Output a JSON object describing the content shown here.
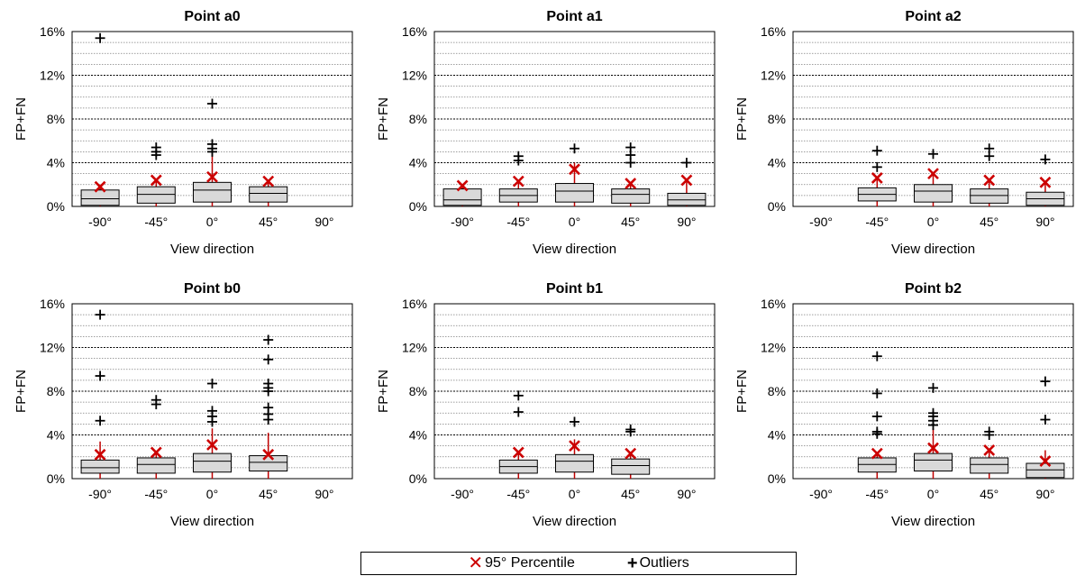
{
  "legend": {
    "percentile_label": "95° Percentile",
    "outliers_label": "Outliers"
  },
  "colors": {
    "box_fill": "#d9d9d9",
    "percentile_marker": "#cc0000",
    "whisker": "#c00000",
    "outlier": "#000000",
    "grid": "#000000"
  },
  "chart_data": [
    {
      "type": "box",
      "title": "Point a0",
      "xlabel": "View direction",
      "ylabel": "FP+FN",
      "categories": [
        "-90°",
        "-45°",
        "0°",
        "45°",
        "90°"
      ],
      "y_ticks": [
        "0%",
        "4%",
        "8%",
        "12%",
        "16%"
      ],
      "ylim": [
        0,
        16
      ],
      "boxes": [
        {
          "q1": 0.1,
          "median": 0.7,
          "q3": 1.5,
          "whisker_low": 0,
          "whisker_high": 1.8,
          "p95": 1.8,
          "outliers": [
            15.4
          ]
        },
        {
          "q1": 0.3,
          "median": 1.1,
          "q3": 1.8,
          "whisker_low": 0,
          "whisker_high": 2.4,
          "p95": 2.4,
          "outliers": [
            4.7,
            5.0,
            5.4
          ]
        },
        {
          "q1": 0.4,
          "median": 1.5,
          "q3": 2.2,
          "whisker_low": 0,
          "whisker_high": 4.8,
          "p95": 2.7,
          "outliers": [
            5.0,
            5.3,
            5.7,
            9.4
          ]
        },
        {
          "q1": 0.4,
          "median": 1.2,
          "q3": 1.8,
          "whisker_low": 0,
          "whisker_high": 2.3,
          "p95": 2.3,
          "outliers": []
        },
        null
      ]
    },
    {
      "type": "box",
      "title": "Point a1",
      "xlabel": "View direction",
      "ylabel": "FP+FN",
      "categories": [
        "-90°",
        "-45°",
        "0°",
        "45°",
        "90°"
      ],
      "y_ticks": [
        "0%",
        "4%",
        "8%",
        "12%",
        "16%"
      ],
      "ylim": [
        0,
        16
      ],
      "boxes": [
        {
          "q1": 0.1,
          "median": 0.6,
          "q3": 1.6,
          "whisker_low": 0,
          "whisker_high": 1.9,
          "p95": 1.9,
          "outliers": []
        },
        {
          "q1": 0.4,
          "median": 1.0,
          "q3": 1.6,
          "whisker_low": 0,
          "whisker_high": 2.3,
          "p95": 2.3,
          "outliers": [
            4.2,
            4.6
          ]
        },
        {
          "q1": 0.4,
          "median": 1.4,
          "q3": 2.1,
          "whisker_low": 0,
          "whisker_high": 4.0,
          "p95": 3.4,
          "outliers": [
            5.3
          ]
        },
        {
          "q1": 0.3,
          "median": 1.1,
          "q3": 1.6,
          "whisker_low": 0,
          "whisker_high": 2.1,
          "p95": 2.1,
          "outliers": [
            4.0,
            4.7,
            5.4
          ]
        },
        {
          "q1": 0.1,
          "median": 0.6,
          "q3": 1.2,
          "whisker_low": 0,
          "whisker_high": 2.4,
          "p95": 2.4,
          "outliers": [
            4.0
          ]
        }
      ]
    },
    {
      "type": "box",
      "title": "Point a2",
      "xlabel": "View direction",
      "ylabel": "FP+FN",
      "categories": [
        "-90°",
        "-45°",
        "0°",
        "45°",
        "90°"
      ],
      "y_ticks": [
        "0%",
        "4%",
        "8%",
        "12%",
        "16%"
      ],
      "ylim": [
        0,
        16
      ],
      "boxes": [
        null,
        {
          "q1": 0.5,
          "median": 1.1,
          "q3": 1.7,
          "whisker_low": 0,
          "whisker_high": 2.6,
          "p95": 2.6,
          "outliers": [
            3.6,
            5.1
          ]
        },
        {
          "q1": 0.4,
          "median": 1.4,
          "q3": 2.0,
          "whisker_low": 0,
          "whisker_high": 3.0,
          "p95": 3.0,
          "outliers": [
            4.8
          ]
        },
        {
          "q1": 0.3,
          "median": 1.0,
          "q3": 1.6,
          "whisker_low": 0,
          "whisker_high": 2.4,
          "p95": 2.4,
          "outliers": [
            4.6,
            5.3
          ]
        },
        {
          "q1": 0.1,
          "median": 0.7,
          "q3": 1.3,
          "whisker_low": 0,
          "whisker_high": 2.2,
          "p95": 2.2,
          "outliers": [
            4.3
          ]
        }
      ]
    },
    {
      "type": "box",
      "title": "Point b0",
      "xlabel": "View direction",
      "ylabel": "FP+FN",
      "categories": [
        "-90°",
        "-45°",
        "0°",
        "45°",
        "90°"
      ],
      "y_ticks": [
        "0%",
        "4%",
        "8%",
        "12%",
        "16%"
      ],
      "ylim": [
        0,
        16
      ],
      "boxes": [
        {
          "q1": 0.5,
          "median": 1.0,
          "q3": 1.7,
          "whisker_low": 0,
          "whisker_high": 3.4,
          "p95": 2.2,
          "outliers": [
            5.3,
            9.4,
            15.0
          ]
        },
        {
          "q1": 0.5,
          "median": 1.3,
          "q3": 1.9,
          "whisker_low": 0,
          "whisker_high": 2.4,
          "p95": 2.4,
          "outliers": [
            6.8,
            7.2
          ]
        },
        {
          "q1": 0.6,
          "median": 1.6,
          "q3": 2.3,
          "whisker_low": 0,
          "whisker_high": 4.6,
          "p95": 3.1,
          "outliers": [
            5.2,
            5.7,
            6.2,
            8.7
          ]
        },
        {
          "q1": 0.7,
          "median": 1.5,
          "q3": 2.1,
          "whisker_low": 0,
          "whisker_high": 4.2,
          "p95": 2.2,
          "outliers": [
            5.4,
            5.9,
            6.5,
            8.0,
            8.3,
            8.7,
            10.9,
            12.7
          ]
        },
        null
      ]
    },
    {
      "type": "box",
      "title": "Point b1",
      "xlabel": "View direction",
      "ylabel": "FP+FN",
      "categories": [
        "-90°",
        "-45°",
        "0°",
        "45°",
        "90°"
      ],
      "y_ticks": [
        "0%",
        "4%",
        "8%",
        "12%",
        "16%"
      ],
      "ylim": [
        0,
        16
      ],
      "boxes": [
        null,
        {
          "q1": 0.5,
          "median": 1.1,
          "q3": 1.7,
          "whisker_low": 0,
          "whisker_high": 2.4,
          "p95": 2.4,
          "outliers": [
            6.1,
            7.6
          ]
        },
        {
          "q1": 0.6,
          "median": 1.6,
          "q3": 2.2,
          "whisker_low": 0,
          "whisker_high": 3.6,
          "p95": 3.0,
          "outliers": [
            5.2
          ]
        },
        {
          "q1": 0.4,
          "median": 1.2,
          "q3": 1.8,
          "whisker_low": 0,
          "whisker_high": 2.3,
          "p95": 2.3,
          "outliers": [
            4.3,
            4.5
          ]
        },
        null
      ]
    },
    {
      "type": "box",
      "title": "Point b2",
      "xlabel": "View direction",
      "ylabel": "FP+FN",
      "categories": [
        "-90°",
        "-45°",
        "0°",
        "45°",
        "90°"
      ],
      "y_ticks": [
        "0%",
        "4%",
        "8%",
        "12%",
        "16%"
      ],
      "ylim": [
        0,
        16
      ],
      "boxes": [
        null,
        {
          "q1": 0.6,
          "median": 1.3,
          "q3": 1.9,
          "whisker_low": 0,
          "whisker_high": 2.3,
          "p95": 2.3,
          "outliers": [
            4.1,
            4.3,
            5.7,
            7.8,
            11.2
          ]
        },
        {
          "q1": 0.7,
          "median": 1.7,
          "q3": 2.3,
          "whisker_low": 0,
          "whisker_high": 4.6,
          "p95": 2.8,
          "outliers": [
            4.9,
            5.3,
            5.7,
            6.0,
            8.3
          ]
        },
        {
          "q1": 0.5,
          "median": 1.3,
          "q3": 1.9,
          "whisker_low": 0,
          "whisker_high": 2.6,
          "p95": 2.6,
          "outliers": [
            4.0,
            4.3
          ]
        },
        {
          "q1": 0.1,
          "median": 0.8,
          "q3": 1.4,
          "whisker_low": 0,
          "whisker_high": 2.6,
          "p95": 1.6,
          "outliers": [
            5.4,
            8.9
          ]
        }
      ]
    }
  ]
}
